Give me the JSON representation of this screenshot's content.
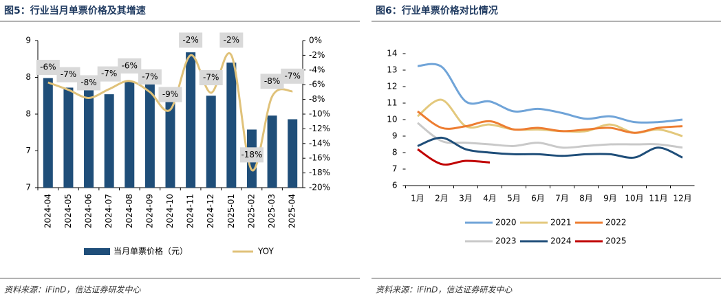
{
  "chart_data": [
    {
      "type": "bar",
      "title": "图5：行业当月单票价格及其增速",
      "source": "资料来源：iFinD，信达证券研发中心",
      "categories": [
        "2024-04",
        "2024-05",
        "2024-06",
        "2024-07",
        "2024-08",
        "2024-09",
        "2024-10",
        "2024-11",
        "2024-12",
        "2025-01",
        "2025-02",
        "2025-03",
        "2025-04"
      ],
      "series": [
        {
          "name": "当月单票价格（元）",
          "type": "bar",
          "color": "#1f4e79",
          "values": [
            7.99,
            7.86,
            7.84,
            7.77,
            7.94,
            7.91,
            7.67,
            8.34,
            7.75,
            8.2,
            7.29,
            7.48,
            7.43
          ]
        },
        {
          "name": "YOY",
          "type": "line",
          "axis": "y2",
          "color": "#e0c27a",
          "values": [
            -5.7,
            -6.7,
            -7.8,
            -6.6,
            -5.5,
            -7.0,
            -9.4,
            -2.0,
            -7.1,
            -2.0,
            -17.6,
            -7.6,
            -6.9
          ],
          "value_labels": [
            "-6%",
            "-7%",
            "-8%",
            "-7%",
            "-6%",
            "-7%",
            "-9%",
            "-2%",
            "-7%",
            "-2%",
            "-18%",
            "-8%",
            "-7%"
          ]
        }
      ],
      "ylim": [
        6.5,
        8.5
      ],
      "yticks": [
        {
          "value": 6.5,
          "label": "7"
        },
        7,
        {
          "value": 7.5,
          "label": "8"
        },
        8,
        {
          "value": 8.5,
          "label": "9"
        }
      ],
      "y2lim": [
        -20,
        0
      ],
      "y2ticks": [
        {
          "value": -20,
          "label": "-20%"
        },
        {
          "value": -18,
          "label": "-18%"
        },
        {
          "value": -16,
          "label": "-16%"
        },
        {
          "value": -14,
          "label": "-14%"
        },
        {
          "value": -12,
          "label": "-12%"
        },
        {
          "value": -10,
          "label": "-10%"
        },
        {
          "value": -8,
          "label": "-8%"
        },
        {
          "value": -6,
          "label": "-6%"
        },
        {
          "value": -4,
          "label": "-4%"
        },
        {
          "value": -2,
          "label": "-2%"
        },
        {
          "value": 0,
          "label": "0%"
        }
      ],
      "legend": "bottom"
    },
    {
      "type": "line",
      "title": "图6：行业单票价格对比情况",
      "source": "资料来源：iFinD，信达证券研发中心",
      "categories": [
        "1月",
        "2月",
        "3月",
        "4月",
        "5月",
        "6月",
        "7月",
        "8月",
        "9月",
        "10月",
        "11月",
        "12月"
      ],
      "series": [
        {
          "name": "2020",
          "color": "#70a4d8",
          "values": [
            13.25,
            13.2,
            11.1,
            11.1,
            10.5,
            10.65,
            10.4,
            10.05,
            10.2,
            9.85,
            9.85,
            10.0
          ]
        },
        {
          "name": "2021",
          "color": "#e3c87c",
          "values": [
            10.2,
            11.2,
            9.6,
            9.7,
            9.4,
            9.4,
            9.3,
            9.3,
            9.7,
            9.2,
            9.4,
            9.0
          ]
        },
        {
          "name": "2022",
          "color": "#ed7d31",
          "values": [
            10.5,
            9.5,
            9.6,
            9.9,
            9.4,
            9.5,
            9.3,
            9.4,
            9.5,
            9.2,
            9.5,
            9.6
          ]
        },
        {
          "name": "2023",
          "color": "#c9c9c9",
          "values": [
            9.8,
            8.7,
            8.6,
            8.5,
            8.4,
            8.6,
            8.3,
            8.4,
            8.5,
            8.5,
            8.5,
            8.3
          ]
        },
        {
          "name": "2024",
          "color": "#1f4e79",
          "values": [
            8.4,
            8.9,
            8.2,
            8.0,
            7.9,
            7.9,
            7.8,
            7.9,
            7.9,
            7.7,
            8.3,
            7.7
          ]
        },
        {
          "name": "2025",
          "color": "#c00000",
          "values": [
            8.2,
            7.3,
            7.5,
            7.4,
            null,
            null,
            null,
            null,
            null,
            null,
            null,
            null
          ]
        }
      ],
      "ylim": [
        6,
        14
      ],
      "yticks": [
        6,
        7,
        8,
        9,
        10,
        11,
        12,
        13,
        14
      ],
      "legend": "bottom"
    }
  ]
}
